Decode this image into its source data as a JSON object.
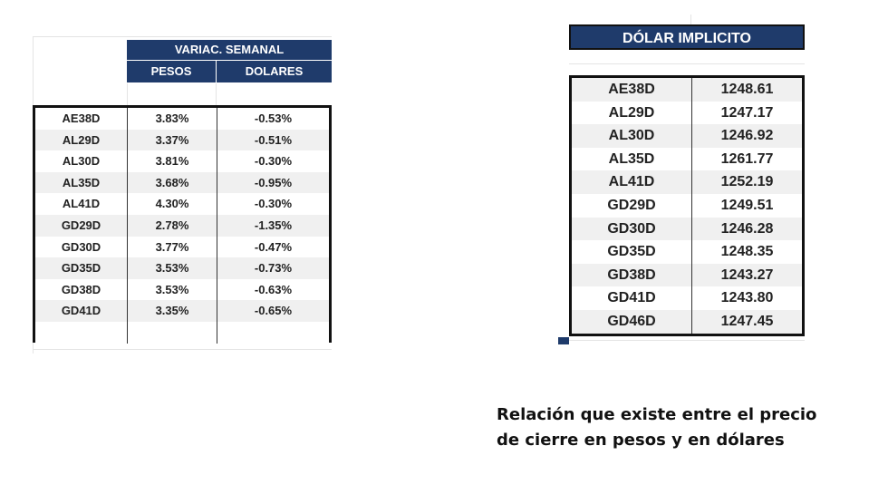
{
  "variacion": {
    "title": "VARIAC. SEMANAL",
    "columns": [
      "PESOS",
      "DOLARES"
    ],
    "rows": [
      {
        "ticker": "AE38D",
        "pesos": "3.83%",
        "dolares": "-0.53%"
      },
      {
        "ticker": "AL29D",
        "pesos": "3.37%",
        "dolares": "-0.51%"
      },
      {
        "ticker": "AL30D",
        "pesos": "3.81%",
        "dolares": "-0.30%"
      },
      {
        "ticker": "AL35D",
        "pesos": "3.68%",
        "dolares": "-0.95%"
      },
      {
        "ticker": "AL41D",
        "pesos": "4.30%",
        "dolares": "-0.30%"
      },
      {
        "ticker": "GD29D",
        "pesos": "2.78%",
        "dolares": "-1.35%"
      },
      {
        "ticker": "GD30D",
        "pesos": "3.77%",
        "dolares": "-0.47%"
      },
      {
        "ticker": "GD35D",
        "pesos": "3.53%",
        "dolares": "-0.73%"
      },
      {
        "ticker": "GD38D",
        "pesos": "3.53%",
        "dolares": "-0.63%"
      },
      {
        "ticker": "GD41D",
        "pesos": "3.35%",
        "dolares": "-0.65%"
      }
    ]
  },
  "dolar": {
    "title": "DÓLAR IMPLICITO",
    "rows": [
      {
        "ticker": "AE38D",
        "value": "1248.61"
      },
      {
        "ticker": "AL29D",
        "value": "1247.17"
      },
      {
        "ticker": "AL30D",
        "value": "1246.92"
      },
      {
        "ticker": "AL35D",
        "value": "1261.77"
      },
      {
        "ticker": "AL41D",
        "value": "1252.19"
      },
      {
        "ticker": "GD29D",
        "value": "1249.51"
      },
      {
        "ticker": "GD30D",
        "value": "1246.28"
      },
      {
        "ticker": "GD35D",
        "value": "1248.35"
      },
      {
        "ticker": "GD38D",
        "value": "1243.27"
      },
      {
        "ticker": "GD41D",
        "value": "1243.80"
      },
      {
        "ticker": "GD46D",
        "value": "1247.45"
      }
    ]
  },
  "caption": {
    "line1": "Relación que existe entre el precio",
    "line2": "de cierre en pesos y en dólares"
  },
  "colors": {
    "header_navy": "#1f3b6b"
  }
}
